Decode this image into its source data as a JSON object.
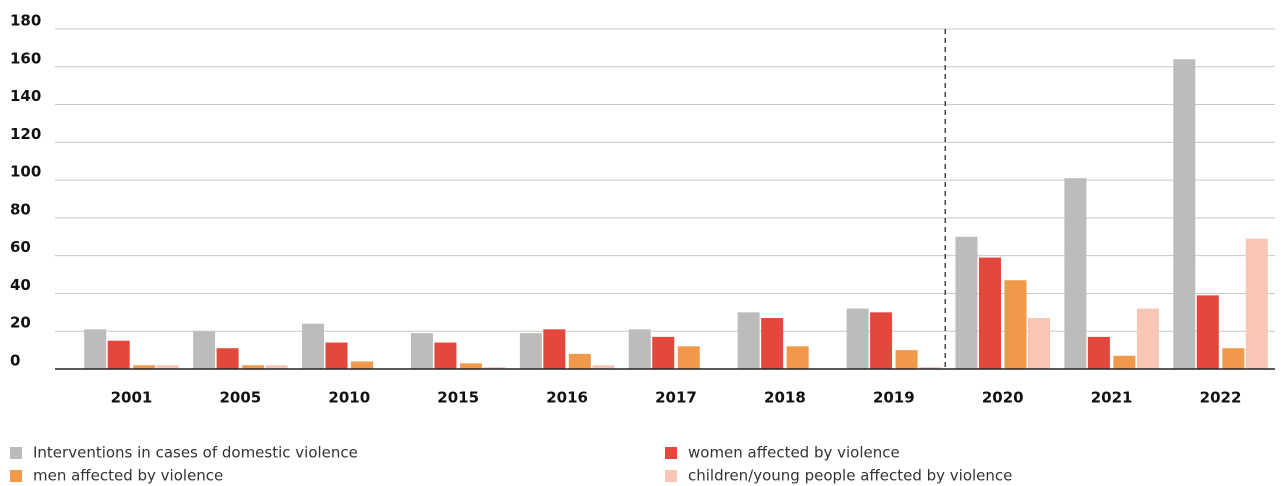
{
  "chart_data": {
    "type": "bar",
    "categories": [
      "2001",
      "2005",
      "2010",
      "2015",
      "2016",
      "2017",
      "2018",
      "2019",
      "2020",
      "2021",
      "2022"
    ],
    "series": [
      {
        "name": "Interventions in cases of domestic violence",
        "color": "#bdbcbb",
        "values": [
          21,
          20,
          24,
          19,
          19,
          21,
          30,
          32,
          70,
          101,
          164
        ]
      },
      {
        "name": "women affected by violence",
        "color": "#e3483c",
        "values": [
          15,
          11,
          14,
          14,
          21,
          17,
          27,
          30,
          59,
          17,
          39
        ]
      },
      {
        "name": "men affected by violence",
        "color": "#f0994a",
        "values": [
          2,
          2,
          4,
          3,
          8,
          12,
          12,
          10,
          47,
          7,
          11
        ]
      },
      {
        "name": "children/young people affected by violence",
        "color": "#f9c6b5",
        "values": [
          2,
          2,
          0,
          1,
          2,
          0,
          0,
          1,
          27,
          32,
          69
        ]
      }
    ],
    "ylim": [
      0,
      180
    ],
    "yticks": [
      0,
      20,
      40,
      60,
      80,
      100,
      120,
      140,
      160,
      180
    ],
    "grid": true
  }
}
